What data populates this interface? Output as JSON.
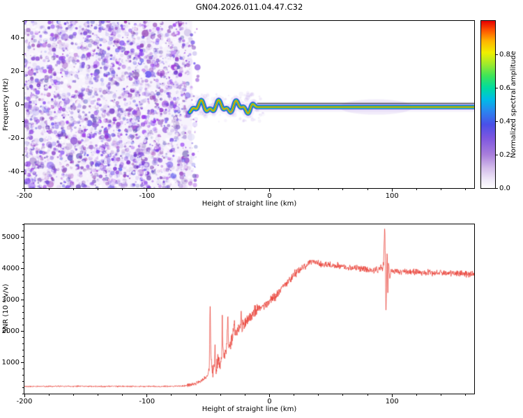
{
  "title": "GN04.2026.011.04.47.C32",
  "colors": {
    "background": "#ffffff",
    "axis": "#000000",
    "noise_purple": "#8a5fd0",
    "snr_line": "#e8332a"
  },
  "chart_data": [
    {
      "type": "heatmap",
      "title": "GN04.2026.011.04.47.C32",
      "xlabel": "Height of straight line (km)",
      "ylabel": "Frequency (Hz)",
      "xlim": [
        -200,
        167
      ],
      "ylim": [
        -50,
        50
      ],
      "xticks": [
        {
          "v": -200,
          "label": "-200"
        },
        {
          "v": -100,
          "label": "-100"
        },
        {
          "v": 0,
          "label": "0"
        },
        {
          "v": 100,
          "label": "100"
        }
      ],
      "xminor_step": 20,
      "yticks": [
        {
          "v": -40,
          "label": "-40"
        },
        {
          "v": -20,
          "label": "-20"
        },
        {
          "v": 0,
          "label": "0"
        },
        {
          "v": 20,
          "label": "20"
        },
        {
          "v": 40,
          "label": "40"
        }
      ],
      "yminor_step": 10,
      "noise_region": {
        "x_from": -200,
        "x_to": -65,
        "description": "dense purple speckle noise, no coherent signal"
      },
      "signal": {
        "y_center": -1.5,
        "wiggle_from": -65,
        "wiggle_to": -10,
        "wiggle_amplitude_hz": 4,
        "straight_to": 167,
        "black_line_y": 0.7,
        "description": "narrow high-amplitude spectral ridge near 0 Hz, wavy between -65 and -10 km, flat afterwards"
      },
      "colorbar": {
        "label": "Normalized spectral amplitude",
        "lim": [
          0,
          1
        ],
        "ticks": [
          {
            "v": 0.0,
            "label": "0.0"
          },
          {
            "v": 0.2,
            "label": "0.2"
          },
          {
            "v": 0.4,
            "label": "0.4"
          },
          {
            "v": 0.6,
            "label": "0.6"
          },
          {
            "v": 0.8,
            "label": "0.8"
          }
        ],
        "stops": [
          {
            "p": 0.0,
            "c": "#ffffff"
          },
          {
            "p": 0.05,
            "c": "#f0e9f9"
          },
          {
            "p": 0.12,
            "c": "#d4bdeb"
          },
          {
            "p": 0.2,
            "c": "#a97fdc"
          },
          {
            "p": 0.3,
            "c": "#7e57e0"
          },
          {
            "p": 0.38,
            "c": "#4b50e8"
          },
          {
            "p": 0.46,
            "c": "#2b86f0"
          },
          {
            "p": 0.53,
            "c": "#00bce8"
          },
          {
            "p": 0.6,
            "c": "#00dca0"
          },
          {
            "p": 0.67,
            "c": "#3ce45a"
          },
          {
            "p": 0.74,
            "c": "#9eea2e"
          },
          {
            "p": 0.81,
            "c": "#f0f000"
          },
          {
            "p": 0.88,
            "c": "#ffb400"
          },
          {
            "p": 0.94,
            "c": "#ff5a00"
          },
          {
            "p": 1.0,
            "c": "#e60000"
          }
        ]
      }
    },
    {
      "type": "line",
      "xlabel": "Height of straight line (km)",
      "ylabel": "SNR (10 * v/v)",
      "xlim": [
        -200,
        167
      ],
      "ylim": [
        0,
        5400
      ],
      "xticks": [
        {
          "v": -200,
          "label": "-200"
        },
        {
          "v": -100,
          "label": "-100"
        },
        {
          "v": 0,
          "label": "0"
        },
        {
          "v": 100,
          "label": "100"
        }
      ],
      "xminor_step": 20,
      "yticks": [
        {
          "v": 1000,
          "label": "1000"
        },
        {
          "v": 2000,
          "label": "2000"
        },
        {
          "v": 3000,
          "label": "3000"
        },
        {
          "v": 4000,
          "label": "4000"
        },
        {
          "v": 5000,
          "label": "5000"
        }
      ],
      "yminor_step": 200,
      "series": [
        {
          "name": "SNR",
          "color": "#e8332a",
          "control_points": [
            [
              -200,
              235
            ],
            [
              -180,
              230
            ],
            [
              -160,
              235
            ],
            [
              -140,
              230
            ],
            [
              -120,
              232
            ],
            [
              -100,
              230
            ],
            [
              -90,
              232
            ],
            [
              -80,
              235
            ],
            [
              -72,
              240
            ],
            [
              -66,
              260
            ],
            [
              -62,
              300
            ],
            [
              -58,
              360
            ],
            [
              -55,
              430
            ],
            [
              -52,
              520
            ],
            [
              -50,
              640
            ],
            [
              -49,
              800
            ],
            [
              -48.5,
              3100
            ],
            [
              -48,
              1500
            ],
            [
              -47,
              800
            ],
            [
              -46,
              700
            ],
            [
              -45,
              900
            ],
            [
              -44.5,
              1600
            ],
            [
              -44,
              800
            ],
            [
              -43,
              900
            ],
            [
              -42,
              1100
            ],
            [
              -41,
              900
            ],
            [
              -40,
              1000
            ],
            [
              -39,
              1100
            ],
            [
              -38.5,
              2450
            ],
            [
              -38,
              1300
            ],
            [
              -37,
              1200
            ],
            [
              -36,
              1300
            ],
            [
              -35,
              1500
            ],
            [
              -34,
              2550
            ],
            [
              -33.5,
              1600
            ],
            [
              -33,
              1500
            ],
            [
              -32,
              1600
            ],
            [
              -31,
              1700
            ],
            [
              -30,
              1800
            ],
            [
              -29,
              2300
            ],
            [
              -28,
              1900
            ],
            [
              -27,
              1950
            ],
            [
              -26,
              2000
            ],
            [
              -25,
              2050
            ],
            [
              -24,
              2100
            ],
            [
              -23,
              2700
            ],
            [
              -22.5,
              2100
            ],
            [
              -22,
              2150
            ],
            [
              -21,
              2200
            ],
            [
              -20,
              2250
            ],
            [
              -19,
              2300
            ],
            [
              -18,
              2350
            ],
            [
              -17,
              2400
            ],
            [
              -16,
              2450
            ],
            [
              -15,
              2500
            ],
            [
              -14,
              2550
            ],
            [
              -13,
              2600
            ],
            [
              -12,
              2620
            ],
            [
              -11,
              2650
            ],
            [
              -10,
              2680
            ],
            [
              -8,
              2720
            ],
            [
              -6,
              2760
            ],
            [
              -4,
              2800
            ],
            [
              -2,
              2850
            ],
            [
              0,
              2950
            ],
            [
              2,
              3000
            ],
            [
              4,
              3100
            ],
            [
              6,
              3150
            ],
            [
              8,
              3250
            ],
            [
              10,
              3350
            ],
            [
              12,
              3400
            ],
            [
              14,
              3500
            ],
            [
              16,
              3600
            ],
            [
              18,
              3700
            ],
            [
              20,
              3800
            ],
            [
              22,
              3850
            ],
            [
              24,
              3950
            ],
            [
              26,
              4000
            ],
            [
              28,
              4050
            ],
            [
              30,
              4100
            ],
            [
              32,
              4150
            ],
            [
              34,
              4180
            ],
            [
              36,
              4200
            ],
            [
              38,
              4180
            ],
            [
              40,
              4150
            ],
            [
              45,
              4120
            ],
            [
              50,
              4100
            ],
            [
              55,
              4080
            ],
            [
              60,
              4050
            ],
            [
              65,
              4020
            ],
            [
              70,
              4000
            ],
            [
              75,
              3980
            ],
            [
              80,
              3950
            ],
            [
              85,
              3930
            ],
            [
              88,
              3950
            ],
            [
              90,
              3980
            ],
            [
              92,
              4000
            ],
            [
              93,
              4100
            ],
            [
              94,
              5350
            ],
            [
              94.6,
              4200
            ],
            [
              95,
              2550
            ],
            [
              95.5,
              3500
            ],
            [
              96,
              4800
            ],
            [
              96.5,
              3000
            ],
            [
              97,
              4200
            ],
            [
              98,
              3700
            ],
            [
              99,
              3850
            ],
            [
              100,
              3900
            ],
            [
              105,
              3880
            ],
            [
              110,
              3900
            ],
            [
              115,
              3870
            ],
            [
              120,
              3880
            ],
            [
              125,
              3850
            ],
            [
              130,
              3870
            ],
            [
              135,
              3840
            ],
            [
              140,
              3860
            ],
            [
              145,
              3830
            ],
            [
              150,
              3840
            ],
            [
              155,
              3820
            ],
            [
              160,
              3830
            ],
            [
              167,
              3800
            ]
          ],
          "noise": [
            {
              "x_to": -68,
              "amp": 28
            },
            {
              "x_to": -50,
              "amp": 70
            },
            {
              "x_to": -10,
              "amp": 260
            },
            {
              "x_to": 25,
              "amp": 180
            },
            {
              "x_to": 167,
              "amp": 130
            }
          ]
        }
      ]
    }
  ]
}
